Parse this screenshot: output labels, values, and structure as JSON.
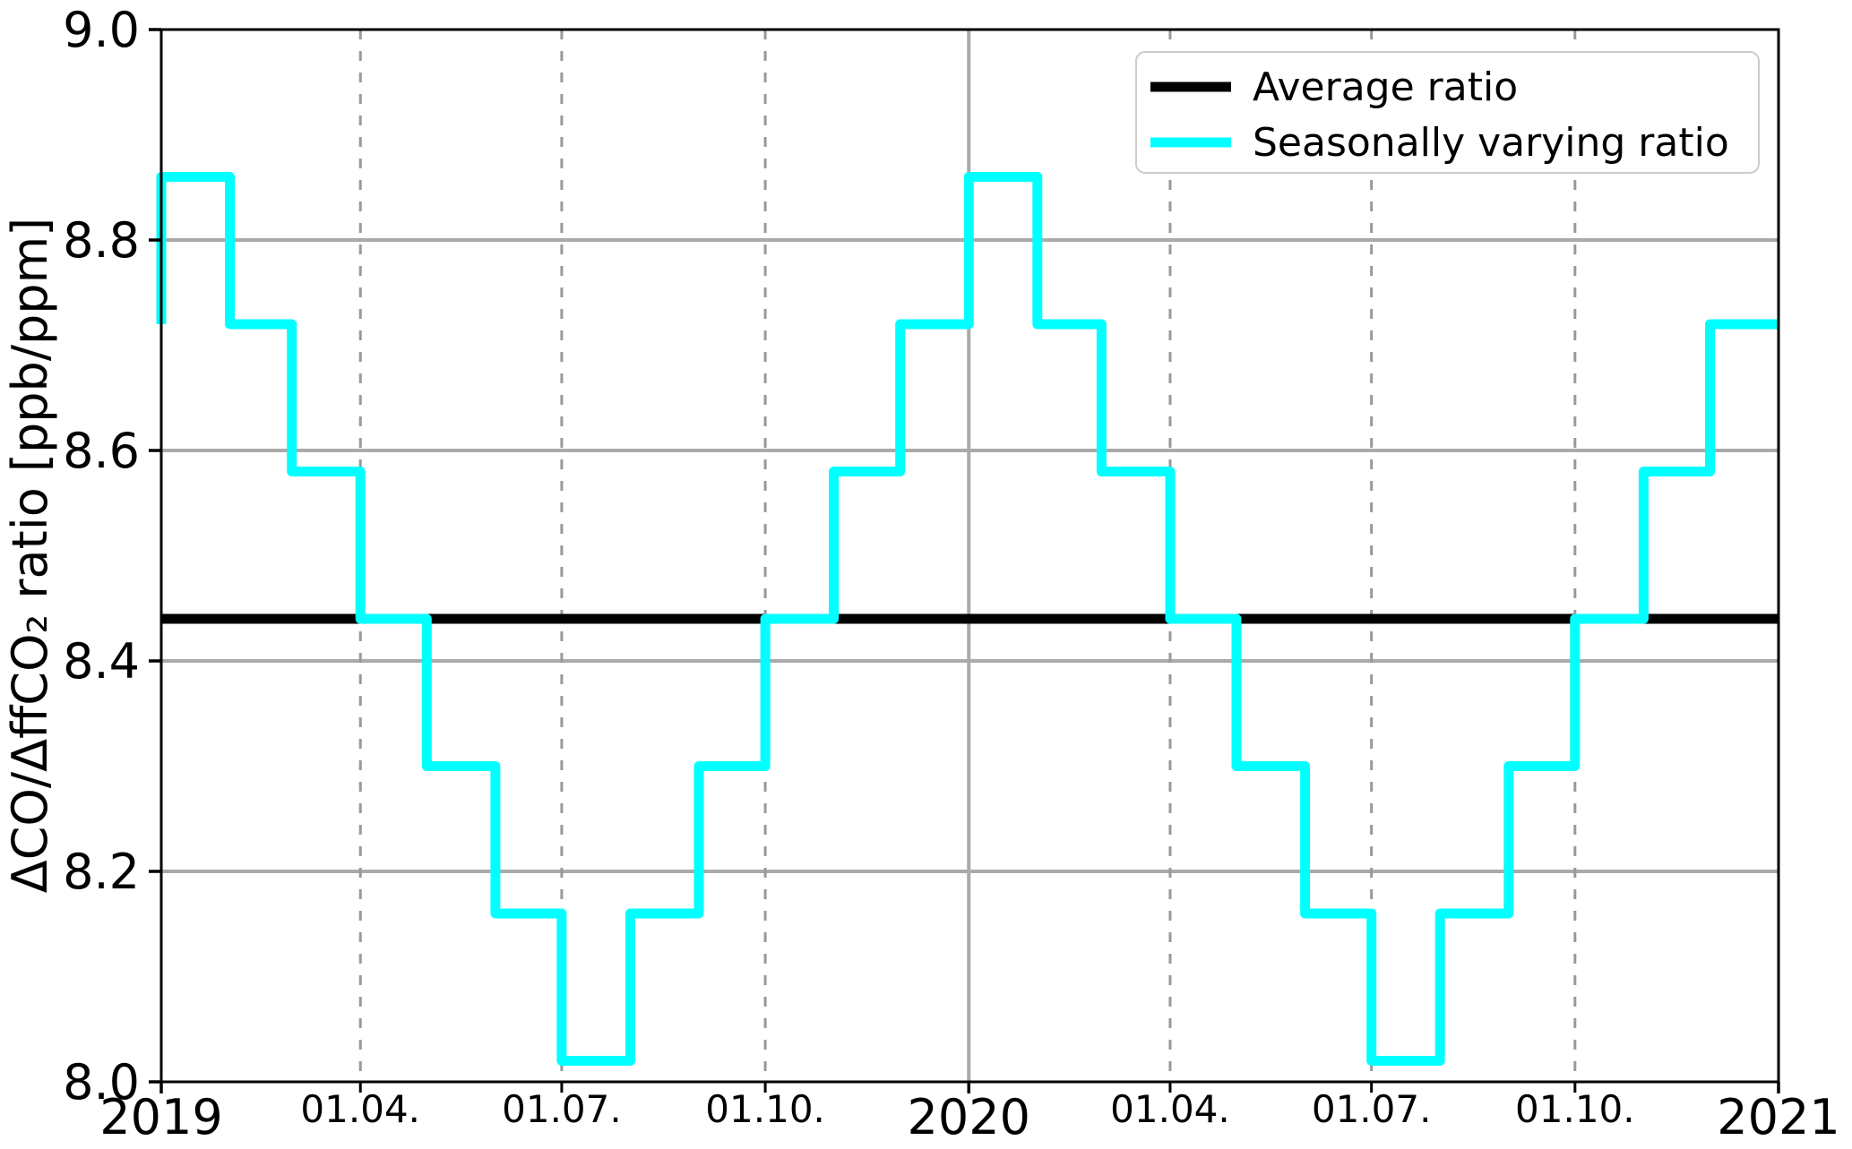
{
  "figure": {
    "background_color": "#ffffff",
    "spine_color": "#000000"
  },
  "chart_data": {
    "type": "line",
    "subtype": "step-post-monthly",
    "title": "",
    "xlabel": "",
    "ylabel": "ΔCO/ΔffCO₂ ratio [ppb/ppm]",
    "ylim": [
      8.0,
      9.0
    ],
    "yticks": [
      9.0,
      8.8,
      8.6,
      8.4,
      8.2,
      8.0
    ],
    "x_start": "2019-01-01",
    "x_end": "2021-01-01",
    "x_total_days": 731,
    "x_major_ticks": [
      {
        "label": "2019",
        "day": 0
      },
      {
        "label": "2020",
        "day": 365
      },
      {
        "label": "2021",
        "day": 731
      }
    ],
    "x_minor_ticks": [
      {
        "label": "01.04.",
        "day": 90
      },
      {
        "label": "01.07.",
        "day": 181
      },
      {
        "label": "01.10.",
        "day": 273
      },
      {
        "label": "01.04.",
        "day": 456
      },
      {
        "label": "01.07.",
        "day": 547
      },
      {
        "label": "01.10.",
        "day": 639
      }
    ],
    "grid": {
      "on": true,
      "horizontal_values": [
        8.2,
        8.4,
        8.6,
        8.8
      ],
      "vertical_solid_days": [
        365
      ],
      "vertical_dashed_days": [
        90,
        181,
        273,
        456,
        547,
        639
      ],
      "solid_color": "#aaaaaa",
      "dashed_color": "#999999"
    },
    "legend_position": "upper right",
    "series": [
      {
        "name": "Average ratio",
        "type": "hline",
        "value": 8.44,
        "color": "#000000"
      },
      {
        "name": "Seasonally varying ratio",
        "type": "step",
        "color": "#00ffff",
        "left_edge_start_value": 8.72,
        "month_labels": [
          "2019-01",
          "2019-02",
          "2019-03",
          "2019-04",
          "2019-05",
          "2019-06",
          "2019-07",
          "2019-08",
          "2019-09",
          "2019-10",
          "2019-11",
          "2019-12",
          "2020-01",
          "2020-02",
          "2020-03",
          "2020-04",
          "2020-05",
          "2020-06",
          "2020-07",
          "2020-08",
          "2020-09",
          "2020-10",
          "2020-11",
          "2020-12"
        ],
        "month_lengths_days": [
          31,
          28,
          31,
          30,
          31,
          30,
          31,
          31,
          30,
          31,
          30,
          31,
          31,
          29,
          31,
          30,
          31,
          30,
          31,
          31,
          30,
          31,
          30,
          31
        ],
        "monthly_values": [
          8.86,
          8.72,
          8.58,
          8.44,
          8.3,
          8.16,
          8.02,
          8.16,
          8.3,
          8.44,
          8.58,
          8.72,
          8.86,
          8.72,
          8.58,
          8.44,
          8.3,
          8.16,
          8.02,
          8.16,
          8.3,
          8.44,
          8.58,
          8.72
        ]
      }
    ]
  }
}
